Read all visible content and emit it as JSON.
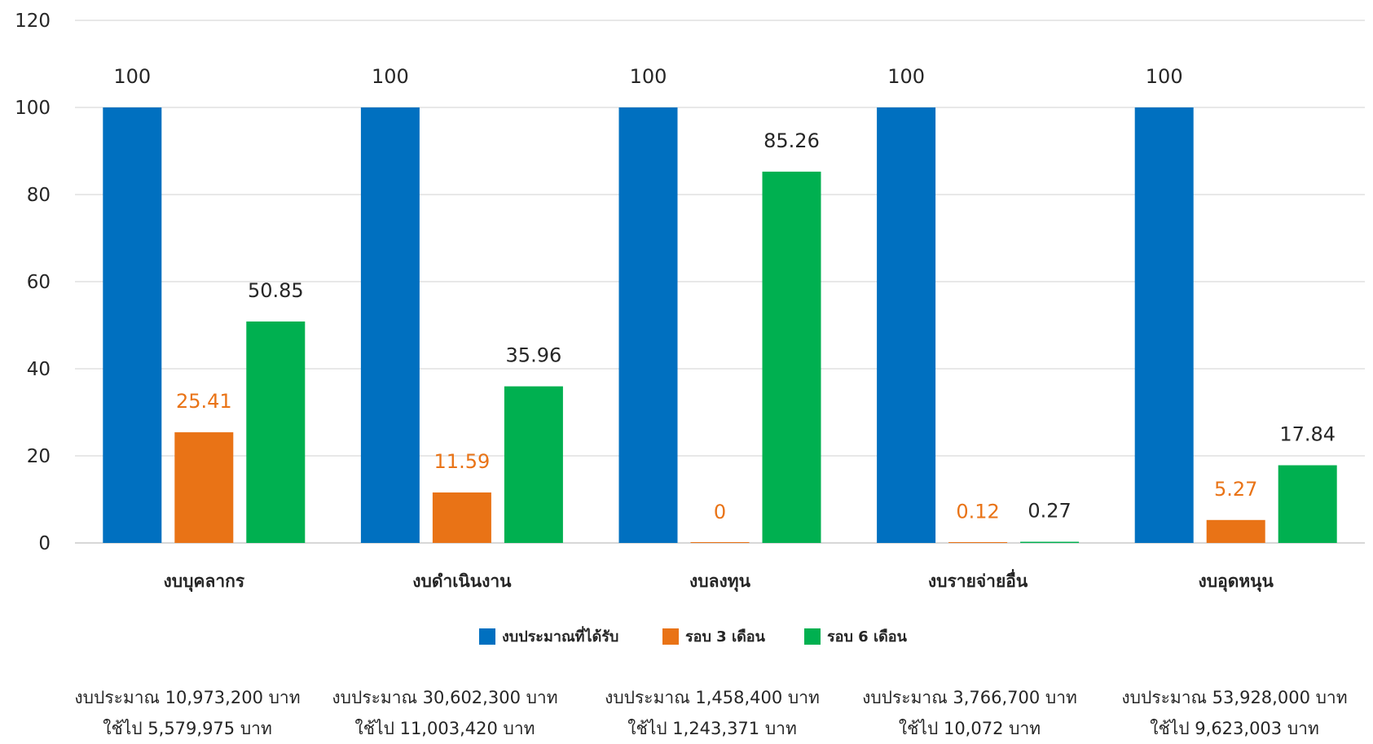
{
  "chart_data": {
    "type": "bar",
    "categories": [
      "งบบุคลากร",
      "งบดำเนินงาน",
      "งบลงทุน",
      "งบรายจ่ายอื่น",
      "งบอุดหนุน"
    ],
    "series": [
      {
        "name": "งบประมาณที่ได้รับ",
        "values": [
          100,
          100,
          100,
          100,
          100
        ],
        "labels": [
          "100",
          "100",
          "100",
          "100",
          "100"
        ],
        "color": "#0070C0",
        "label_color": "#262626"
      },
      {
        "name": "รอบ 3 เดือน",
        "values": [
          25.41,
          11.59,
          0,
          0.12,
          5.27
        ],
        "labels": [
          "25.41",
          "11.59",
          "0",
          "0.12",
          "5.27"
        ],
        "color": "#E97316",
        "label_color": "#E97316"
      },
      {
        "name": "รอบ 6 เดือน",
        "values": [
          50.85,
          35.96,
          85.26,
          0.27,
          17.84
        ],
        "labels": [
          "50.85",
          "35.96",
          "85.26",
          "0.27",
          "17.84"
        ],
        "color": "#00B050",
        "label_color": "#262626"
      }
    ],
    "yticks": [
      "0",
      "20",
      "40",
      "60",
      "80",
      "100",
      "120"
    ],
    "ylim": [
      0,
      120
    ],
    "grid": true,
    "legend_position": "bottom"
  },
  "notes": [
    {
      "budget": "งบประมาณ 10,973,200 บาท",
      "used": "ใช้ไป 5,579,975 บาท"
    },
    {
      "budget": "งบประมาณ 30,602,300 บาท",
      "used": "ใช้ไป 11,003,420 บาท"
    },
    {
      "budget": "งบประมาณ 1,458,400 บาท",
      "used": "ใช้ไป 1,243,371 บาท"
    },
    {
      "budget": "งบประมาณ 3,766,700 บาท",
      "used": "ใช้ไป 10,072 บาท"
    },
    {
      "budget": "งบประมาณ 53,928,000 บาท",
      "used": "ใช้ไป 9,623,003 บาท"
    }
  ]
}
